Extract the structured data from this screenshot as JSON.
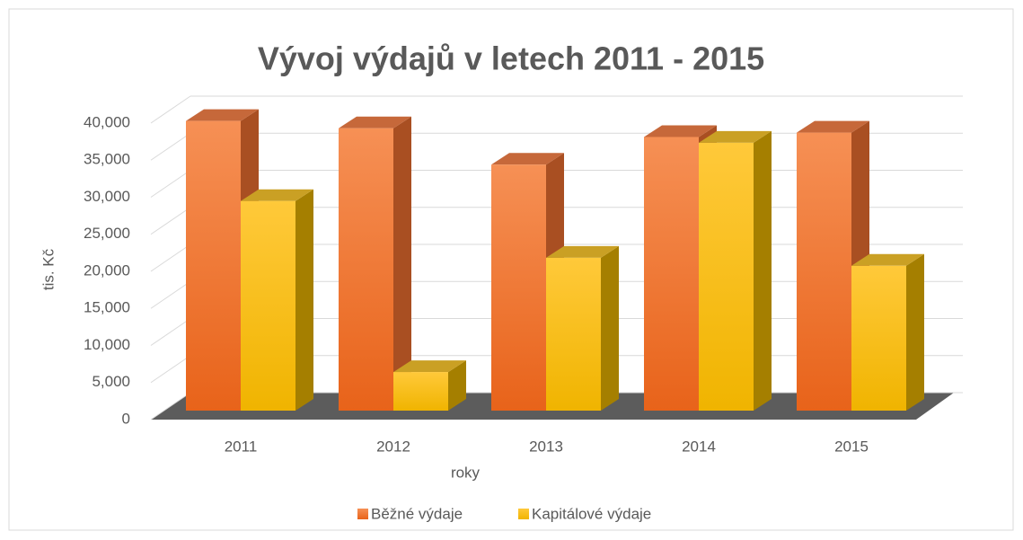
{
  "chart_data": {
    "type": "bar3d",
    "title": "Vývoj výdajů v letech 2011 - 2015",
    "x_label": "roky",
    "y_label": "tis. Kč",
    "categories": [
      "2011",
      "2012",
      "2013",
      "2014",
      "2015"
    ],
    "series": [
      {
        "name": "Běžné výdaje",
        "color": "#ed7d31",
        "values": [
          39800,
          38800,
          33800,
          37600,
          38200
        ]
      },
      {
        "name": "Kapitálové výdaje",
        "color": "#ffc000",
        "values": [
          28800,
          5300,
          21000,
          36800,
          19900
        ]
      }
    ],
    "ylim": [
      0,
      40000
    ],
    "yticks": [
      0,
      {
        "value": 5000,
        "label": "5,000"
      },
      {
        "value": 10000,
        "label": "10,000"
      },
      {
        "value": 15000,
        "label": "15,000"
      },
      {
        "value": 20000,
        "label": "20,000"
      },
      {
        "value": 25000,
        "label": "25,000"
      },
      {
        "value": 30000,
        "label": "30,000"
      },
      {
        "value": 35000,
        "label": "35,000"
      },
      {
        "value": 40000,
        "label": "40,000"
      }
    ],
    "grid": true,
    "legend": "bottom"
  }
}
